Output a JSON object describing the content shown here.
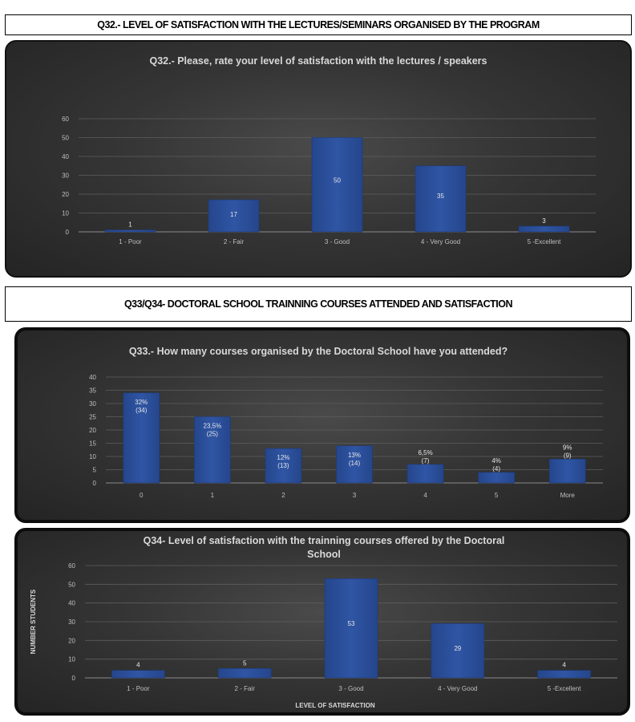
{
  "headers": {
    "q32": "Q32.- LEVEL OF SATISFACTION WITH THE LECTURES/SEMINARS ORGANISED BY THE PROGRAM",
    "q33q34": "Q33/Q34- DOCTORAL SCHOOL TRAINNING COURSES ATTENDED AND SATISFACTION"
  },
  "colors": {
    "bar": "#2f55a4",
    "bar_edge": "#1d3a78",
    "panel_dark": "#242424",
    "text": "#d9d9d9"
  },
  "chart_data": [
    {
      "type": "bar",
      "title": "Q32.- Please, rate your level of satisfaction with the lectures / speakers",
      "categories": [
        "1 - Poor",
        "2 - Fair",
        "3 - Good",
        "4 - Very Good",
        "5 -Excellent"
      ],
      "values": [
        1,
        17,
        50,
        35,
        3
      ],
      "labels": [
        [
          "1"
        ],
        [
          "17"
        ],
        [
          "50"
        ],
        [
          "35"
        ],
        [
          "3"
        ]
      ],
      "ylim": [
        0,
        60
      ],
      "yticks": [
        0,
        10,
        20,
        30,
        40,
        50,
        60
      ],
      "xlabel": "",
      "ylabel": "",
      "grid": true,
      "legend": "none"
    },
    {
      "type": "bar",
      "title": "Q33.- How many courses organised by the Doctoral School have you attended?",
      "categories": [
        "0",
        "1",
        "2",
        "3",
        "4",
        "5",
        "More"
      ],
      "values": [
        34,
        25,
        13,
        14,
        7,
        4,
        9
      ],
      "labels": [
        [
          "32%",
          "(34)"
        ],
        [
          "23,5%",
          "(25)"
        ],
        [
          "12%",
          "(13)"
        ],
        [
          "13%",
          "(14)"
        ],
        [
          "6,5%",
          "(7)"
        ],
        [
          "4%",
          "(4)"
        ],
        [
          "9%",
          "(9)"
        ]
      ],
      "ylim": [
        0,
        40
      ],
      "yticks": [
        0,
        5,
        10,
        15,
        20,
        25,
        30,
        35,
        40
      ],
      "xlabel": "",
      "ylabel": "",
      "grid": true,
      "legend": "none"
    },
    {
      "type": "bar",
      "title": "Q34- Level of satisfaction with the trainning courses offered by the Doctoral School",
      "title_lines": [
        "Q34- Level of satisfaction with the trainning courses offered by the Doctoral",
        "School"
      ],
      "categories": [
        "1 - Poor",
        "2 - Fair",
        "3 - Good",
        "4 - Very Good",
        "5 -Excellent"
      ],
      "values": [
        4,
        5,
        53,
        29,
        4
      ],
      "labels": [
        [
          "4"
        ],
        [
          "5"
        ],
        [
          "53"
        ],
        [
          "29"
        ],
        [
          "4"
        ]
      ],
      "ylim": [
        0,
        60
      ],
      "yticks": [
        0,
        10,
        20,
        30,
        40,
        50,
        60
      ],
      "xlabel": "LEVEL OF SATISFACTION",
      "ylabel": "NUMBER STUDENTS",
      "grid": true,
      "legend": "none"
    }
  ]
}
